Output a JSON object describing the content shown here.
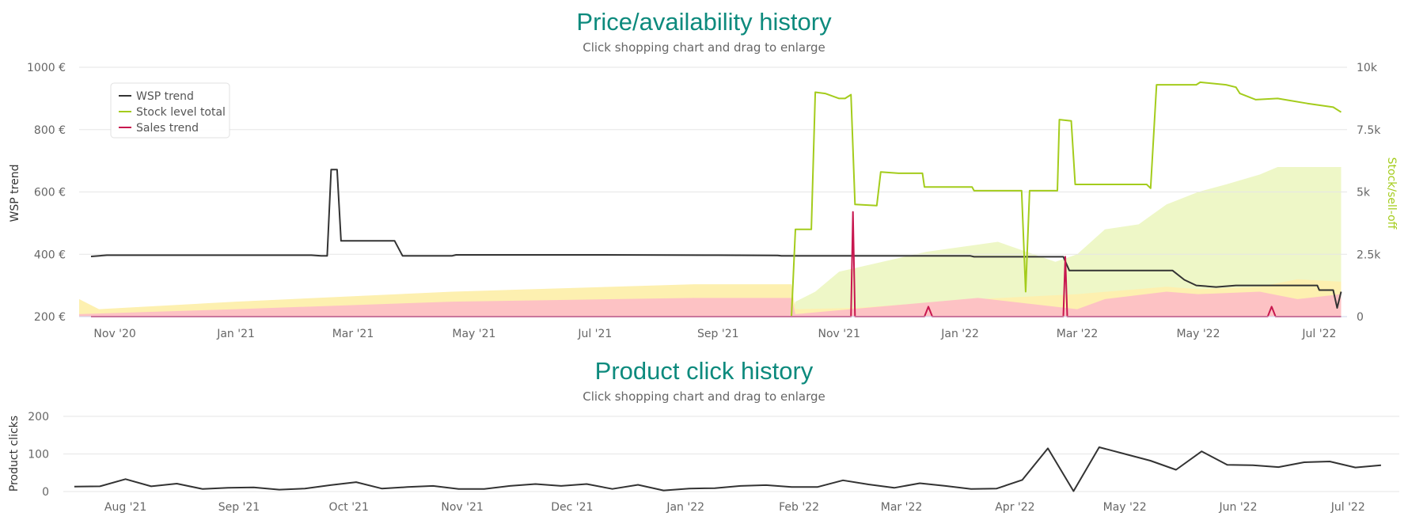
{
  "chart_data": [
    {
      "type": "line",
      "title": "Price/availability history",
      "subtitle": "Click shopping chart and drag to enlarge",
      "ylabel": "WSP trend",
      "y2label": "Stock/sell-off",
      "ylim": [
        200,
        1000
      ],
      "y2lim": [
        0,
        10000
      ],
      "xlim": [
        "2020-10-14",
        "2022-07-15"
      ],
      "grid": true,
      "legend_position": "top-left",
      "x_ticks": [
        {
          "date": "2020-11-01",
          "label": "Nov '20"
        },
        {
          "date": "2021-01-01",
          "label": "Jan '21"
        },
        {
          "date": "2021-03-01",
          "label": "Mar '21"
        },
        {
          "date": "2021-05-01",
          "label": "May '21"
        },
        {
          "date": "2021-07-01",
          "label": "Jul '21"
        },
        {
          "date": "2021-09-01",
          "label": "Sep '21"
        },
        {
          "date": "2021-11-01",
          "label": "Nov '21"
        },
        {
          "date": "2022-01-01",
          "label": "Jan '22"
        },
        {
          "date": "2022-03-01",
          "label": "Mar '22"
        },
        {
          "date": "2022-05-01",
          "label": "May '22"
        },
        {
          "date": "2022-07-01",
          "label": "Jul '22"
        }
      ],
      "y_ticks": [
        {
          "value": 200,
          "label": "200 €"
        },
        {
          "value": 400,
          "label": "400 €"
        },
        {
          "value": 600,
          "label": "600 €"
        },
        {
          "value": 800,
          "label": "800 €"
        },
        {
          "value": 1000,
          "label": "1000 €"
        }
      ],
      "y2_ticks": [
        {
          "value": 0,
          "label": "0"
        },
        {
          "value": 2500,
          "label": "2.5k"
        },
        {
          "value": 5000,
          "label": "5k"
        },
        {
          "value": 7500,
          "label": "7.5k"
        },
        {
          "value": 10000,
          "label": "10k"
        }
      ],
      "series": [
        {
          "name": "WSP trend",
          "axis": "left",
          "color": "#333333",
          "points": [
            [
              "2020-10-20",
              393
            ],
            [
              "2020-10-24",
              395
            ],
            [
              "2020-10-28",
              397
            ],
            [
              "2021-02-08",
              397
            ],
            [
              "2021-02-13",
              395
            ],
            [
              "2021-02-16",
              395
            ],
            [
              "2021-02-18",
              672
            ],
            [
              "2021-02-21",
              672
            ],
            [
              "2021-02-23",
              443
            ],
            [
              "2021-02-28",
              443
            ],
            [
              "2021-03-22",
              443
            ],
            [
              "2021-03-26",
              395
            ],
            [
              "2021-04-20",
              395
            ],
            [
              "2021-04-22",
              398
            ],
            [
              "2021-07-01",
              398
            ],
            [
              "2021-09-01",
              397
            ],
            [
              "2021-10-01",
              396
            ],
            [
              "2021-10-03",
              395
            ],
            [
              "2022-01-06",
              395
            ],
            [
              "2022-01-08",
              392
            ],
            [
              "2022-02-22",
              392
            ],
            [
              "2022-02-25",
              348
            ],
            [
              "2022-04-18",
              348
            ],
            [
              "2022-04-24",
              318
            ],
            [
              "2022-04-30",
              300
            ],
            [
              "2022-05-10",
              295
            ],
            [
              "2022-05-20",
              300
            ],
            [
              "2022-06-30",
              300
            ],
            [
              "2022-07-01",
              285
            ],
            [
              "2022-07-08",
              285
            ],
            [
              "2022-07-10",
              228
            ],
            [
              "2022-07-12",
              280
            ]
          ]
        },
        {
          "name": "Stock level total",
          "axis": "right",
          "color": "#a4cc1c",
          "points": [
            [
              "2021-10-08",
              0
            ],
            [
              "2021-10-10",
              3500
            ],
            [
              "2021-10-18",
              3500
            ],
            [
              "2021-10-20",
              9000
            ],
            [
              "2021-10-25",
              8950
            ],
            [
              "2021-11-01",
              8750
            ],
            [
              "2021-11-04",
              8750
            ],
            [
              "2021-11-07",
              8900
            ],
            [
              "2021-11-09",
              4500
            ],
            [
              "2021-11-20",
              4450
            ],
            [
              "2021-11-22",
              5800
            ],
            [
              "2021-12-01",
              5750
            ],
            [
              "2021-12-13",
              5750
            ],
            [
              "2021-12-14",
              5200
            ],
            [
              "2022-01-07",
              5200
            ],
            [
              "2022-01-08",
              5050
            ],
            [
              "2022-02-01",
              5050
            ],
            [
              "2022-02-03",
              1000
            ],
            [
              "2022-02-05",
              5050
            ],
            [
              "2022-02-19",
              5050
            ],
            [
              "2022-02-20",
              7900
            ],
            [
              "2022-02-26",
              7850
            ],
            [
              "2022-02-28",
              5300
            ],
            [
              "2022-04-05",
              5300
            ],
            [
              "2022-04-07",
              5150
            ],
            [
              "2022-04-10",
              9300
            ],
            [
              "2022-04-30",
              9300
            ],
            [
              "2022-05-02",
              9400
            ],
            [
              "2022-05-15",
              9300
            ],
            [
              "2022-05-20",
              9200
            ],
            [
              "2022-05-22",
              8950
            ],
            [
              "2022-05-30",
              8700
            ],
            [
              "2022-06-10",
              8750
            ],
            [
              "2022-06-25",
              8550
            ],
            [
              "2022-07-08",
              8400
            ],
            [
              "2022-07-12",
              8200
            ]
          ]
        },
        {
          "name": "Sales trend",
          "axis": "right",
          "color": "#c8174f",
          "points": [
            [
              "2020-10-20",
              0
            ],
            [
              "2021-11-07",
              0
            ],
            [
              "2021-11-08",
              4200
            ],
            [
              "2021-11-09",
              0
            ],
            [
              "2021-12-14",
              0
            ],
            [
              "2021-12-16",
              400
            ],
            [
              "2021-12-18",
              0
            ],
            [
              "2022-02-22",
              0
            ],
            [
              "2022-02-23",
              2400
            ],
            [
              "2022-02-24",
              0
            ],
            [
              "2022-06-05",
              0
            ],
            [
              "2022-06-07",
              400
            ],
            [
              "2022-06-09",
              0
            ],
            [
              "2022-07-12",
              0
            ]
          ]
        }
      ],
      "bands": [
        {
          "name": "stock band",
          "color": "#eef7c7",
          "points": [
            [
              "2021-10-08",
              0
            ],
            [
              "2021-10-10",
              600
            ],
            [
              "2021-10-20",
              1000
            ],
            [
              "2021-11-01",
              1800
            ],
            [
              "2021-12-15",
              2600
            ],
            [
              "2022-01-20",
              3000
            ],
            [
              "2022-02-18",
              2200
            ],
            [
              "2022-03-01",
              2500
            ],
            [
              "2022-03-15",
              3500
            ],
            [
              "2022-04-01",
              3700
            ],
            [
              "2022-04-15",
              4500
            ],
            [
              "2022-05-01",
              5000
            ],
            [
              "2022-05-15",
              5300
            ],
            [
              "2022-06-01",
              5700
            ],
            [
              "2022-06-10",
              6000
            ],
            [
              "2022-07-12",
              6000
            ]
          ]
        },
        {
          "name": "sell-off band",
          "color": "#fdf0b0",
          "points": [
            [
              "2020-10-14",
              700
            ],
            [
              "2020-10-24",
              300
            ],
            [
              "2021-01-01",
              600
            ],
            [
              "2021-04-20",
              1000
            ],
            [
              "2021-08-20",
              1300
            ],
            [
              "2021-09-15",
              1300
            ],
            [
              "2021-10-08",
              1300
            ],
            [
              "2021-10-10",
              300
            ],
            [
              "2021-11-10",
              350
            ],
            [
              "2022-01-10",
              700
            ],
            [
              "2022-03-01",
              900
            ],
            [
              "2022-04-15",
              1200
            ],
            [
              "2022-05-01",
              1100
            ],
            [
              "2022-06-01",
              1200
            ],
            [
              "2022-06-20",
              1500
            ],
            [
              "2022-07-12",
              1400
            ]
          ]
        },
        {
          "name": "sales band",
          "color": "#fdc2c4",
          "points": [
            [
              "2020-10-14",
              100
            ],
            [
              "2021-01-01",
              300
            ],
            [
              "2021-04-20",
              600
            ],
            [
              "2021-08-20",
              750
            ],
            [
              "2021-10-08",
              750
            ],
            [
              "2021-10-10",
              100
            ],
            [
              "2022-01-10",
              750
            ],
            [
              "2022-03-01",
              300
            ],
            [
              "2022-03-15",
              700
            ],
            [
              "2022-04-15",
              1000
            ],
            [
              "2022-05-01",
              900
            ],
            [
              "2022-06-01",
              1000
            ],
            [
              "2022-06-20",
              700
            ],
            [
              "2022-07-12",
              900
            ]
          ]
        }
      ]
    },
    {
      "type": "line",
      "title": "Product click history",
      "subtitle": "Click shopping chart and drag to enlarge",
      "ylabel": "Product clicks",
      "ylim": [
        0,
        200
      ],
      "xlim": [
        "2021-07-15",
        "2022-07-15"
      ],
      "grid": true,
      "x_ticks": [
        {
          "date": "2021-08-01",
          "label": "Aug '21"
        },
        {
          "date": "2021-09-01",
          "label": "Sep '21"
        },
        {
          "date": "2021-10-01",
          "label": "Oct '21"
        },
        {
          "date": "2021-11-01",
          "label": "Nov '21"
        },
        {
          "date": "2021-12-01",
          "label": "Dec '21"
        },
        {
          "date": "2022-01-01",
          "label": "Jan '22"
        },
        {
          "date": "2022-02-01",
          "label": "Feb '22"
        },
        {
          "date": "2022-03-01",
          "label": "Mar '22"
        },
        {
          "date": "2022-04-01",
          "label": "Apr '22"
        },
        {
          "date": "2022-05-01",
          "label": "May '22"
        },
        {
          "date": "2022-06-01",
          "label": "Jun '22"
        },
        {
          "date": "2022-07-01",
          "label": "Jul '22"
        }
      ],
      "y_ticks": [
        {
          "value": 0,
          "label": "0"
        },
        {
          "value": 100,
          "label": "100"
        },
        {
          "value": 200,
          "label": "200"
        }
      ],
      "series": [
        {
          "name": "Product clicks",
          "color": "#333333",
          "points": [
            [
              "2021-07-18",
              13
            ],
            [
              "2021-07-25",
              14
            ],
            [
              "2021-08-01",
              33
            ],
            [
              "2021-08-08",
              14
            ],
            [
              "2021-08-15",
              21
            ],
            [
              "2021-08-22",
              7
            ],
            [
              "2021-08-29",
              10
            ],
            [
              "2021-09-05",
              11
            ],
            [
              "2021-09-12",
              5
            ],
            [
              "2021-09-19",
              8
            ],
            [
              "2021-09-26",
              17
            ],
            [
              "2021-10-03",
              25
            ],
            [
              "2021-10-10",
              8
            ],
            [
              "2021-10-17",
              12
            ],
            [
              "2021-10-24",
              15
            ],
            [
              "2021-10-31",
              7
            ],
            [
              "2021-11-07",
              7
            ],
            [
              "2021-11-14",
              15
            ],
            [
              "2021-11-21",
              20
            ],
            [
              "2021-11-28",
              15
            ],
            [
              "2021-12-05",
              20
            ],
            [
              "2021-12-12",
              7
            ],
            [
              "2021-12-19",
              18
            ],
            [
              "2021-12-26",
              3
            ],
            [
              "2022-01-02",
              8
            ],
            [
              "2022-01-09",
              9
            ],
            [
              "2022-01-16",
              15
            ],
            [
              "2022-01-23",
              17
            ],
            [
              "2022-01-30",
              12
            ],
            [
              "2022-02-06",
              12
            ],
            [
              "2022-02-13",
              30
            ],
            [
              "2022-02-20",
              19
            ],
            [
              "2022-02-27",
              10
            ],
            [
              "2022-03-06",
              22
            ],
            [
              "2022-03-13",
              15
            ],
            [
              "2022-03-20",
              7
            ],
            [
              "2022-03-27",
              8
            ],
            [
              "2022-04-03",
              31
            ],
            [
              "2022-04-10",
              115
            ],
            [
              "2022-04-17",
              1
            ],
            [
              "2022-04-24",
              118
            ],
            [
              "2022-05-01",
              100
            ],
            [
              "2022-05-08",
              82
            ],
            [
              "2022-05-15",
              58
            ],
            [
              "2022-05-22",
              107
            ],
            [
              "2022-05-29",
              71
            ],
            [
              "2022-06-05",
              70
            ],
            [
              "2022-06-12",
              65
            ],
            [
              "2022-06-19",
              78
            ],
            [
              "2022-06-26",
              80
            ],
            [
              "2022-07-03",
              64
            ],
            [
              "2022-07-10",
              70
            ]
          ]
        }
      ]
    }
  ]
}
